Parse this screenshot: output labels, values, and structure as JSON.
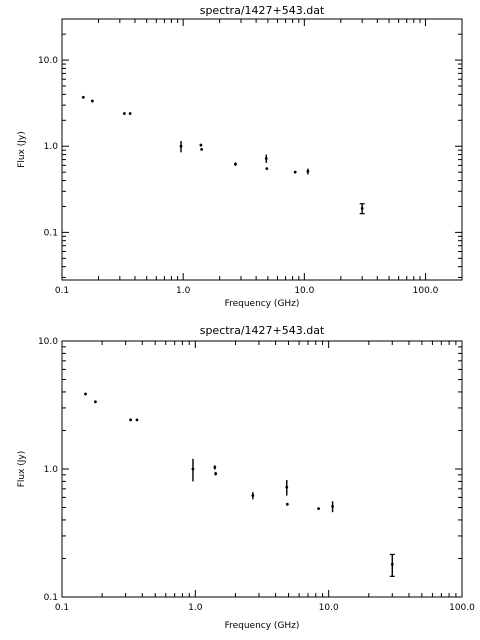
{
  "chart_data": [
    {
      "type": "scatter",
      "title": "spectra/1427+543.dat",
      "xlabel": "Frequency (GHz)",
      "ylabel": "Flux (Jy)",
      "xscale": "log",
      "yscale": "log",
      "xlim": [
        0.1,
        200
      ],
      "ylim": [
        0.028,
        30
      ],
      "xticklabels": [
        "0.1",
        "1.0",
        "10.0",
        "100.0"
      ],
      "xtickvalues": [
        0.1,
        1,
        10,
        100
      ],
      "yticklabels": [
        "0.1",
        "1.0",
        "10.0"
      ],
      "ytickvalues": [
        0.1,
        1,
        10
      ],
      "points": [
        {
          "x": 0.15,
          "y": 3.7,
          "err": 0
        },
        {
          "x": 0.178,
          "y": 3.35,
          "err": 0
        },
        {
          "x": 0.327,
          "y": 2.4,
          "err": 0
        },
        {
          "x": 0.365,
          "y": 2.4,
          "err": 0
        },
        {
          "x": 0.96,
          "y": 1.0,
          "err": 0.15
        },
        {
          "x": 1.4,
          "y": 1.03,
          "err": 0.04
        },
        {
          "x": 1.42,
          "y": 0.92,
          "err": 0.03
        },
        {
          "x": 2.7,
          "y": 0.62,
          "err": 0.03
        },
        {
          "x": 4.85,
          "y": 0.72,
          "err": 0.08
        },
        {
          "x": 4.9,
          "y": 0.55,
          "err": 0
        },
        {
          "x": 8.4,
          "y": 0.5,
          "err": 0
        },
        {
          "x": 10.7,
          "y": 0.51,
          "err": 0.04
        },
        {
          "x": 30,
          "y": 0.19,
          "err": 0.025
        }
      ]
    },
    {
      "type": "scatter",
      "title": "spectra/1427+543.dat",
      "xlabel": "Frequency (GHz)",
      "ylabel": "Flux (Jy)",
      "xscale": "log",
      "yscale": "log",
      "xlim": [
        0.1,
        100
      ],
      "ylim": [
        0.1,
        10
      ],
      "xticklabels": [
        "0.1",
        "1.0",
        "10.0",
        "100.0"
      ],
      "xtickvalues": [
        0.1,
        1,
        10,
        100
      ],
      "yticklabels": [
        "0.1",
        "1.0",
        "10.0"
      ],
      "ytickvalues": [
        0.1,
        1,
        10
      ],
      "points": [
        {
          "x": 0.15,
          "y": 3.85,
          "err": 0
        },
        {
          "x": 0.178,
          "y": 3.35,
          "err": 0
        },
        {
          "x": 0.327,
          "y": 2.42,
          "err": 0
        },
        {
          "x": 0.365,
          "y": 2.42,
          "err": 0
        },
        {
          "x": 0.96,
          "y": 1.0,
          "err": 0.2
        },
        {
          "x": 1.4,
          "y": 1.03,
          "err": 0.04
        },
        {
          "x": 1.42,
          "y": 0.92,
          "err": 0.03
        },
        {
          "x": 2.7,
          "y": 0.62,
          "err": 0.04
        },
        {
          "x": 4.85,
          "y": 0.72,
          "err": 0.1
        },
        {
          "x": 4.9,
          "y": 0.53,
          "err": 0
        },
        {
          "x": 8.4,
          "y": 0.49,
          "err": 0
        },
        {
          "x": 10.7,
          "y": 0.51,
          "err": 0.05
        },
        {
          "x": 30,
          "y": 0.18,
          "err": 0.035
        }
      ]
    }
  ]
}
